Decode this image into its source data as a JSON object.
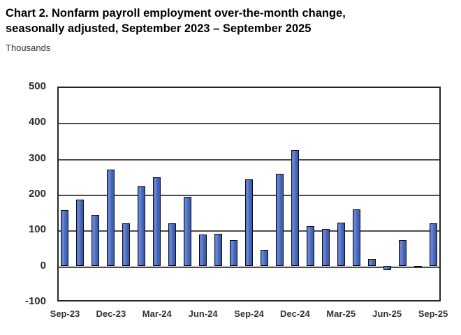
{
  "title": {
    "line1": "Chart 2. Nonfarm payroll employment over-the-month change,",
    "line2": "seasonally adjusted, September 2023 – September 2025"
  },
  "unit_label": "Thousands",
  "chart_data": {
    "type": "bar",
    "title": "Chart 2. Nonfarm payroll employment over-the-month change, seasonally adjusted, September 2023 – September 2025",
    "ylabel": "Thousands",
    "xlabel": "",
    "ylim": [
      -100,
      500
    ],
    "grid": "horizontal",
    "legend_position": "none",
    "bar_color": "#4568bd",
    "bar_border_color": "#0d0d0d",
    "y_ticks": [
      500,
      400,
      300,
      200,
      100,
      0,
      -100
    ],
    "x_tick_labels": [
      "Sep-23",
      "Dec-23",
      "Mar-24",
      "Jun-24",
      "Sep-24",
      "Dec-24",
      "Mar-25",
      "Jun-25",
      "Sep-25"
    ],
    "x_tick_every_n_categories": 3,
    "categories": [
      "Sep-23",
      "Oct-23",
      "Nov-23",
      "Dec-23",
      "Jan-24",
      "Feb-24",
      "Mar-24",
      "Apr-24",
      "May-24",
      "Jun-24",
      "Jul-24",
      "Aug-24",
      "Sep-24",
      "Oct-24",
      "Nov-24",
      "Dec-24",
      "Jan-25",
      "Feb-25",
      "Mar-25",
      "Apr-25",
      "May-25",
      "Jun-25",
      "Jul-25",
      "Aug-25",
      "Sep-25"
    ],
    "values": [
      156,
      184,
      141,
      269,
      119,
      222,
      246,
      118,
      193,
      87,
      88,
      71,
      240,
      44,
      257,
      323,
      111,
      102,
      120,
      158,
      19,
      -13,
      72,
      -4,
      119
    ]
  }
}
